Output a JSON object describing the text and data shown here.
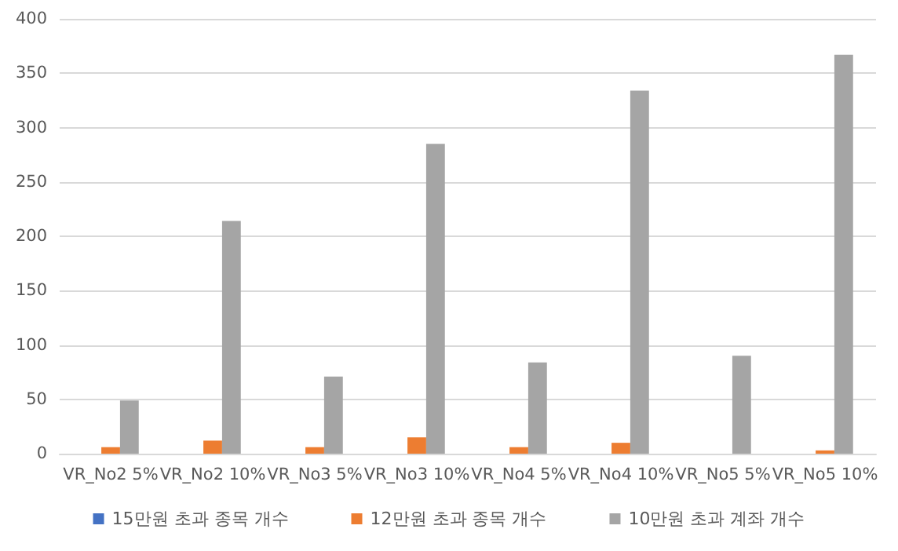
{
  "chart_data": {
    "type": "bar",
    "categories": [
      "VR_No2 5%",
      "VR_No2 10%",
      "VR_No3 5%",
      "VR_No3 10%",
      "VR_No4 5%",
      "VR_No4 10%",
      "VR_No5 5%",
      "VR_No5 10%"
    ],
    "series": [
      {
        "name": "15만원 초과 종목 개수",
        "color": "#4472c4",
        "values": [
          0,
          0,
          0,
          0,
          0,
          0,
          0,
          0
        ]
      },
      {
        "name": "12만원 초과 종목 개수",
        "color": "#ed7d31",
        "values": [
          6,
          12,
          6,
          15,
          6,
          10,
          0,
          3
        ]
      },
      {
        "name": "10만원 초과 계좌 개수",
        "color": "#a5a5a5",
        "values": [
          49,
          214,
          71,
          285,
          84,
          334,
          90,
          367
        ]
      }
    ],
    "ylim": [
      0,
      400
    ],
    "yticks": [
      0,
      50,
      100,
      150,
      200,
      250,
      300,
      350,
      400
    ],
    "grid": "y",
    "legend": "bottom"
  }
}
